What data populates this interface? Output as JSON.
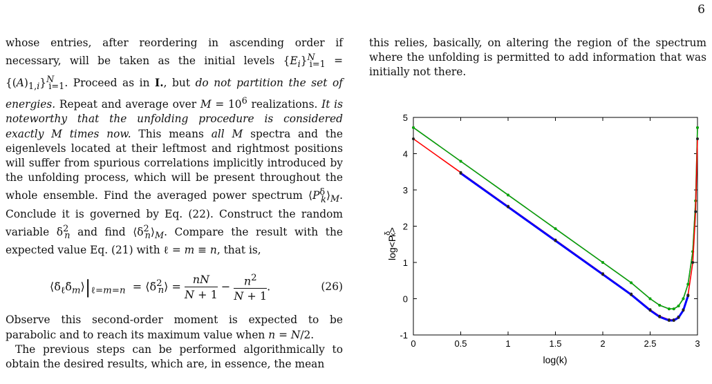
{
  "page_number": "6",
  "left_column": {
    "para1": "whose entries, after reordering in ascending order if necessary, will be taken as the initial levels {E_i}_{i=1}^N = {(A)_{1,i}}_{i=1}^N. Proceed as in I., but do not partition the set of energies. Repeat and average over M = 10^6 realizations. It is noteworthy that the unfolding procedure is considered exactly M times now. This means all M spectra and the eigenlevels located at their leftmost and rightmost positions will suffer from spurious correlations implicitly introduced by the unfolding process, which will be present throughout the whole ensemble. Find the averaged power spectrum ⟨P_k^δ⟩_M. Conclude it is governed by Eq. (22). Construct the random variable δ_n^2 and find ⟨δ_n^2⟩_M. Compare the result with the expected value Eq. (21) with ℓ = m ≡ n, that is,",
    "equation": "⟨δ̃_ℓ δ̃_m⟩|_{ℓ=m=n} = ⟨δ̃_n^2⟩ = nN/(N+1) − n^2/(N+1).",
    "equation_number": "(26)",
    "para2": "Observe this second-order moment is expected to be parabolic and to reach its maximum value when n = N/2.",
    "para3": "The previous steps can be performed algorithmically to obtain the desired results, which are, in essence, the mean"
  },
  "right_column": {
    "para1": "this relies, basically, on altering the region of the spectrum where the unfolding is permitted to add information that was initially not there."
  },
  "chart_data": {
    "type": "line",
    "xlabel": "log(k)",
    "ylabel": "log<P_k^δ>",
    "xlim": [
      0,
      3
    ],
    "ylim": [
      -1,
      5
    ],
    "xticks": [
      "0",
      "0.5",
      "1",
      "1.5",
      "2",
      "2.5",
      "3"
    ],
    "yticks": [
      "-1",
      "0",
      "1",
      "2",
      "3",
      "4",
      "5"
    ],
    "grid": false,
    "series": [
      {
        "color": "#ff00ff",
        "x": [
          0,
          0.5,
          1,
          1.5,
          2,
          2.3,
          2.5,
          2.6,
          2.7,
          2.75,
          2.8,
          2.85,
          2.9,
          2.95,
          2.98,
          3.0
        ],
        "y": [
          4.72,
          3.79,
          2.86,
          1.93,
          1.0,
          0.44,
          0.0,
          -0.18,
          -0.28,
          -0.28,
          -0.2,
          0.0,
          0.4,
          1.3,
          2.7,
          4.72
        ]
      },
      {
        "color": "#00aa00",
        "x": [
          0,
          0.5,
          1,
          1.5,
          2,
          2.3,
          2.5,
          2.6,
          2.7,
          2.75,
          2.8,
          2.85,
          2.9,
          2.95,
          2.98,
          3.0
        ],
        "y": [
          4.72,
          3.79,
          2.86,
          1.93,
          1.0,
          0.44,
          0.0,
          -0.18,
          -0.28,
          -0.28,
          -0.2,
          0.0,
          0.4,
          1.3,
          2.7,
          4.72
        ]
      },
      {
        "color": "#ff0000",
        "x": [
          0,
          0.5,
          1,
          1.5,
          2,
          2.3,
          2.5,
          2.6,
          2.7,
          2.75,
          2.8,
          2.85,
          2.9,
          2.95,
          2.98,
          3.0
        ],
        "y": [
          4.41,
          3.48,
          2.55,
          1.62,
          0.69,
          0.13,
          -0.3,
          -0.48,
          -0.58,
          -0.58,
          -0.5,
          -0.3,
          0.1,
          1.0,
          2.4,
          4.41
        ]
      },
      {
        "color": "#0000ff",
        "x": [
          0.5,
          1,
          1.5,
          2,
          2.3,
          2.5,
          2.6,
          2.7,
          2.75,
          2.8,
          2.85,
          2.9
        ],
        "y": [
          3.46,
          2.53,
          1.6,
          0.67,
          0.11,
          -0.32,
          -0.5,
          -0.6,
          -0.6,
          -0.52,
          -0.32,
          0.08
        ]
      }
    ]
  }
}
